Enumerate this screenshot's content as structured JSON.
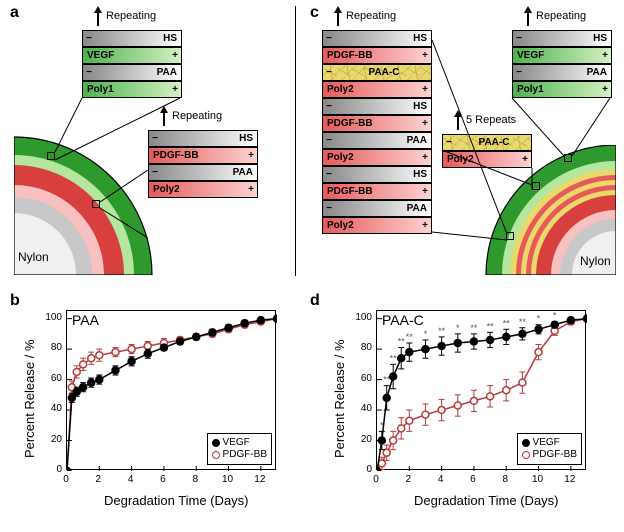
{
  "labels": {
    "panel_a": "a",
    "panel_b": "b",
    "panel_c": "c",
    "panel_d": "d",
    "repeating": "Repeating",
    "five_repeats": "5 Repeats",
    "nylon": "Nylon"
  },
  "layers": {
    "hs": "HS",
    "vegf": "VEGF",
    "paa": "PAA",
    "poly1": "Poly1",
    "poly2": "Poly2",
    "pdgf": "PDGF-BB",
    "paac": "PAA-C",
    "minus": "−",
    "plus": "+"
  },
  "colors": {
    "green_outer": "#2e9a2e",
    "green_inner": "#b5e6a0",
    "red_outer": "#d84040",
    "red_inner": "#f8c0c0",
    "gray_outer": "#c8c8c8",
    "gray_core": "#e8e8e8",
    "yellow": "#e8d96a",
    "vegf_series": "#000000",
    "pdgf_series": "#b73a3a",
    "axis": "#000000"
  },
  "chart_b": {
    "title": "PAA",
    "x_label": "Degradation Time (Days)",
    "y_label": "Percent Release / %",
    "xlim": [
      0,
      13
    ],
    "ylim": [
      0,
      105
    ],
    "xticks": [
      0,
      2,
      4,
      6,
      8,
      10,
      12
    ],
    "yticks": [
      0,
      20,
      40,
      60,
      80,
      100
    ],
    "vegf": {
      "x": [
        0,
        0.3,
        0.6,
        1,
        1.5,
        2,
        3,
        4,
        5,
        6,
        7,
        8,
        9,
        10,
        11,
        12,
        13
      ],
      "y": [
        0,
        48,
        52,
        55,
        58,
        60,
        66,
        72,
        77,
        81,
        85,
        88,
        91,
        94,
        97,
        99,
        100
      ],
      "err": [
        0,
        3,
        3,
        3,
        3,
        3,
        3,
        3,
        3,
        2,
        2,
        2,
        2,
        2,
        2,
        1,
        0
      ]
    },
    "pdgf": {
      "x": [
        0,
        0.3,
        0.6,
        1,
        1.5,
        2,
        3,
        4,
        5,
        6,
        7,
        8,
        9,
        10,
        11,
        12,
        13
      ],
      "y": [
        0,
        55,
        65,
        70,
        74,
        76,
        78,
        80,
        82,
        84,
        86,
        88,
        90,
        93,
        96,
        98,
        100
      ],
      "err": [
        0,
        4,
        4,
        4,
        4,
        4,
        3,
        3,
        3,
        3,
        2,
        2,
        2,
        2,
        2,
        1,
        0
      ]
    },
    "legend": {
      "vegf": "VEGF",
      "pdgf": "PDGF-BB"
    }
  },
  "chart_d": {
    "title": "PAA-C",
    "x_label": "Degradation Time (Days)",
    "y_label": "Percent Release / %",
    "xlim": [
      0,
      13
    ],
    "ylim": [
      0,
      105
    ],
    "xticks": [
      0,
      2,
      4,
      6,
      8,
      10,
      12
    ],
    "yticks": [
      0,
      20,
      40,
      60,
      80,
      100
    ],
    "vegf": {
      "x": [
        0,
        0.3,
        0.6,
        1,
        1.5,
        2,
        3,
        4,
        5,
        6,
        7,
        8,
        9,
        10,
        11,
        12,
        13
      ],
      "y": [
        0,
        20,
        48,
        62,
        74,
        78,
        80,
        82,
        84,
        85,
        86,
        88,
        90,
        93,
        96,
        99,
        100
      ],
      "err": [
        0,
        6,
        8,
        8,
        7,
        6,
        6,
        6,
        6,
        5,
        5,
        5,
        4,
        3,
        2,
        1,
        0
      ],
      "sig": [
        "",
        "*",
        "**",
        "**",
        "**",
        "**",
        "*",
        "**",
        "*",
        "**",
        "**",
        "**",
        "**",
        "*",
        "*",
        "",
        ""
      ]
    },
    "pdgf": {
      "x": [
        0,
        0.3,
        0.6,
        1,
        1.5,
        2,
        3,
        4,
        5,
        6,
        7,
        8,
        9,
        10,
        11,
        12,
        13
      ],
      "y": [
        0,
        5,
        12,
        20,
        28,
        33,
        37,
        40,
        43,
        46,
        49,
        53,
        58,
        78,
        92,
        98,
        100
      ],
      "err": [
        0,
        4,
        5,
        6,
        7,
        7,
        7,
        7,
        7,
        7,
        7,
        7,
        7,
        5,
        3,
        2,
        0
      ]
    },
    "legend": {
      "vegf": "VEGF",
      "pdgf": "PDGF-BB"
    }
  }
}
